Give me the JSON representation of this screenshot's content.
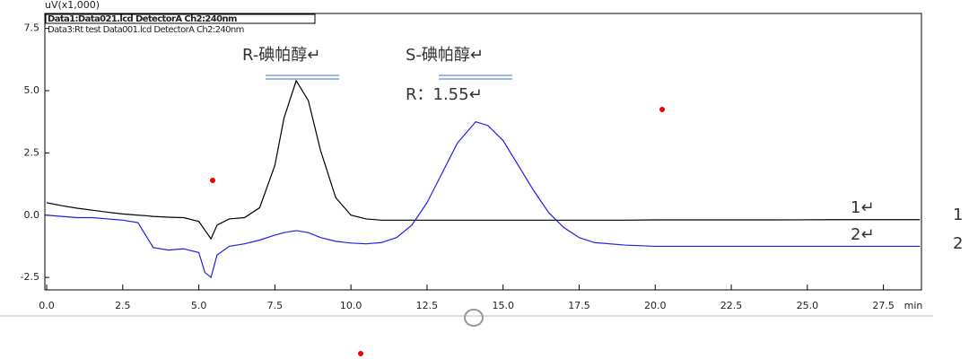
{
  "chart_data": {
    "type": "line",
    "y_label": "uV(x1,000)",
    "x_label": "min",
    "xlim": [
      -0.06,
      28.75
    ],
    "ylim": [
      -3.0,
      8.1
    ],
    "xticks": [
      {
        "value": 0,
        "label": "0.0"
      },
      2.5,
      {
        "value": 5,
        "label": "5.0"
      },
      7.5,
      {
        "value": 10,
        "label": "10.0"
      },
      12.5,
      {
        "value": 15,
        "label": "15.0"
      },
      17.5,
      {
        "value": 20,
        "label": "20.0"
      },
      22.5,
      {
        "value": 25,
        "label": "25.0"
      },
      27.5
    ],
    "yticks": [
      7.5,
      {
        "value": 5,
        "label": "5.0"
      },
      2.5,
      {
        "value": 0,
        "label": "0.0"
      },
      -2.5
    ],
    "legend": "top-left",
    "x": [
      0,
      0.5,
      1,
      1.5,
      2,
      2.5,
      3,
      3.25,
      3.5,
      4,
      4.5,
      5,
      5.2,
      5.4,
      5.6,
      6,
      6.5,
      7,
      7.5,
      7.8,
      8.2,
      8.6,
      9,
      9.5,
      10,
      10.5,
      11,
      11.5,
      12,
      12.5,
      13,
      13.5,
      14.1,
      14.5,
      15,
      15.5,
      16,
      16.5,
      17,
      17.5,
      18,
      19,
      20,
      22,
      24,
      26,
      28,
      28.7
    ],
    "series": [
      {
        "name": "Data1:Data021.lcd DetectorA Ch2:240nm",
        "color": "#000000",
        "values": [
          0.5,
          0.38,
          0.28,
          0.2,
          0.12,
          0.05,
          0.0,
          -0.02,
          -0.05,
          -0.08,
          -0.1,
          -0.25,
          -0.6,
          -0.95,
          -0.4,
          -0.15,
          -0.1,
          0.3,
          2.0,
          3.9,
          5.4,
          4.6,
          2.6,
          0.7,
          0.0,
          -0.15,
          -0.2,
          -0.2,
          -0.2,
          -0.2,
          -0.2,
          -0.2,
          -0.2,
          -0.2,
          -0.2,
          -0.2,
          -0.2,
          -0.2,
          -0.2,
          -0.2,
          -0.2,
          -0.2,
          -0.19,
          -0.19,
          -0.19,
          -0.18,
          -0.18,
          -0.18
        ]
      },
      {
        "name": "Data3:Rt test Data001.lcd DetectorA Ch2:240nm",
        "color": "#1f1fe0",
        "values": [
          0.0,
          -0.05,
          -0.1,
          -0.1,
          -0.15,
          -0.2,
          -0.3,
          -0.8,
          -1.3,
          -1.4,
          -1.35,
          -1.5,
          -2.3,
          -2.5,
          -1.6,
          -1.25,
          -1.15,
          -1.0,
          -0.8,
          -0.7,
          -0.62,
          -0.7,
          -0.9,
          -1.05,
          -1.12,
          -1.15,
          -1.1,
          -0.9,
          -0.4,
          0.5,
          1.7,
          2.9,
          3.75,
          3.6,
          3.0,
          2.0,
          1.0,
          0.1,
          -0.5,
          -0.9,
          -1.1,
          -1.2,
          -1.25,
          -1.25,
          -1.25,
          -1.25,
          -1.25,
          -1.25
        ]
      }
    ],
    "annotations": [
      "R-碘帕醇↵",
      "S-碘帕醇↵",
      "R：1.55↵",
      "1↵",
      "2↵",
      "1",
      "2"
    ]
  }
}
